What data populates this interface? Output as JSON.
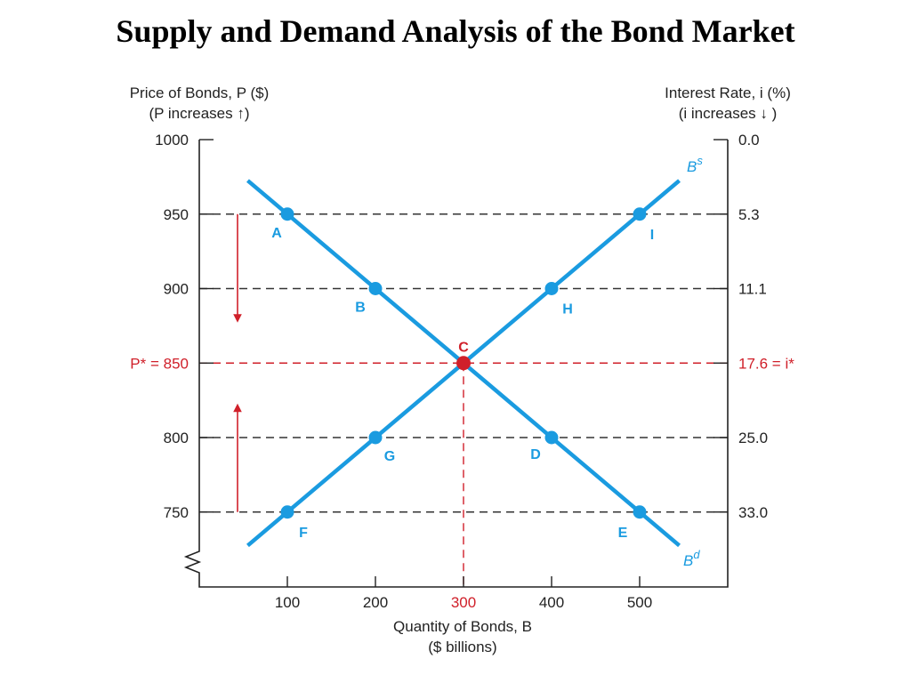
{
  "title": "Supply and Demand Analysis of the Bond Market",
  "colors": {
    "curve": "#1a9be0",
    "equilibrium": "#d0202a",
    "axis": "#222222",
    "gridline": "#333333"
  },
  "chart_data": {
    "type": "line",
    "left_axis": {
      "label_line1": "Price of Bonds, P ($)",
      "label_line2": "(P increases ↑)",
      "ticks": [
        {
          "value": 1000,
          "label": "1000"
        },
        {
          "value": 950,
          "label": "950"
        },
        {
          "value": 900,
          "label": "900"
        },
        {
          "value": 850,
          "label": "P* = 850"
        },
        {
          "value": 800,
          "label": "800"
        },
        {
          "value": 750,
          "label": "750"
        }
      ],
      "range": [
        710,
        1000
      ]
    },
    "right_axis": {
      "label_line1": "Interest Rate, i (%)",
      "label_line2": "(i increases ↓ )",
      "ticks": [
        {
          "price": 1000,
          "label": "0.0"
        },
        {
          "price": 950,
          "label": "5.3"
        },
        {
          "price": 900,
          "label": "11.1"
        },
        {
          "price": 850,
          "label": "17.6 = i*"
        },
        {
          "price": 800,
          "label": "25.0"
        },
        {
          "price": 750,
          "label": "33.0"
        }
      ]
    },
    "x_axis": {
      "label_line1": "Quantity of Bonds, B",
      "label_line2": "($ billions)",
      "ticks": [
        {
          "value": 100,
          "label": "100"
        },
        {
          "value": 200,
          "label": "200"
        },
        {
          "value": 300,
          "label": "300"
        },
        {
          "value": 400,
          "label": "400"
        },
        {
          "value": 500,
          "label": "500"
        }
      ],
      "range": [
        0,
        600
      ]
    },
    "series": [
      {
        "name": "Bd",
        "line_x": [
          55,
          545
        ],
        "line_y": [
          972.5,
          727.5
        ],
        "points": [
          {
            "label": "A",
            "x": 100,
            "y": 950
          },
          {
            "label": "B",
            "x": 200,
            "y": 900
          },
          {
            "label": "D",
            "x": 400,
            "y": 800
          },
          {
            "label": "E",
            "x": 500,
            "y": 750
          }
        ]
      },
      {
        "name": "Bs",
        "line_x": [
          55,
          545
        ],
        "line_y": [
          727.5,
          972.5
        ],
        "points": [
          {
            "label": "F",
            "x": 100,
            "y": 750
          },
          {
            "label": "G",
            "x": 200,
            "y": 800
          },
          {
            "label": "H",
            "x": 400,
            "y": 900
          },
          {
            "label": "I",
            "x": 500,
            "y": 950
          }
        ]
      }
    ],
    "equilibrium": {
      "label": "C",
      "x": 300,
      "y": 850
    },
    "excess_arrows": [
      {
        "direction": "down",
        "x": 45,
        "from": 950,
        "to": 880
      },
      {
        "direction": "up",
        "x": 45,
        "from": 750,
        "to": 820
      }
    ]
  }
}
